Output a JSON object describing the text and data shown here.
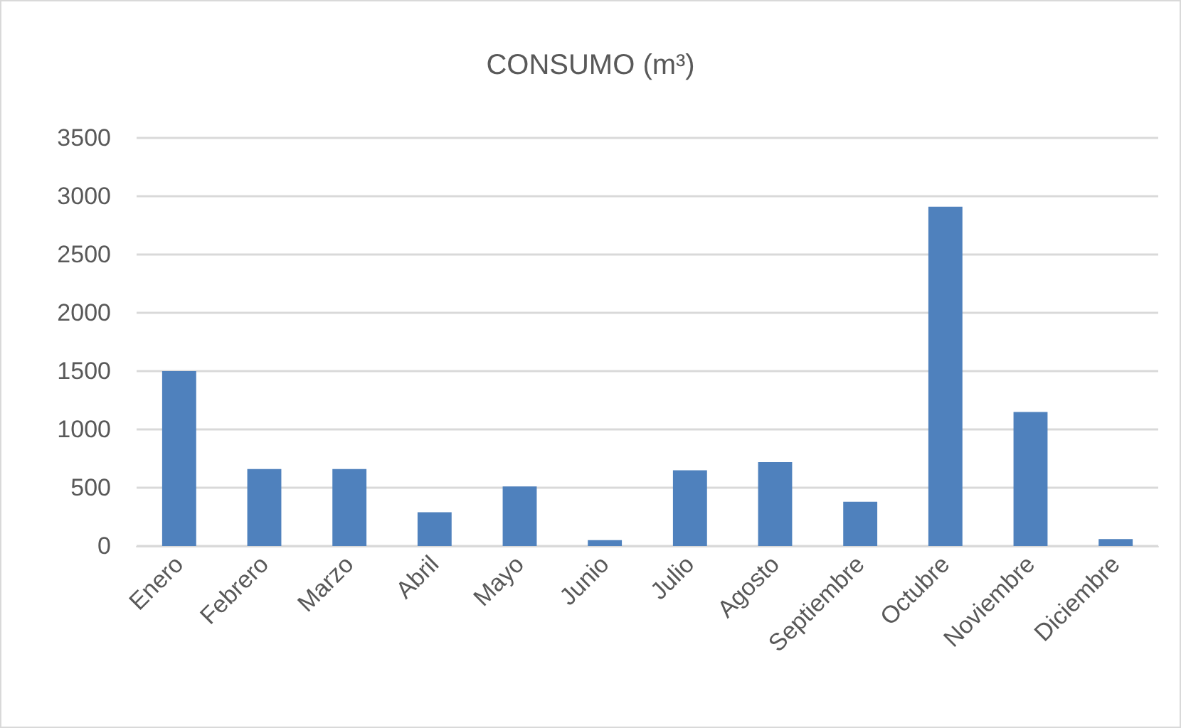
{
  "chart_data": {
    "type": "bar",
    "title": "CONSUMO (m³)",
    "categories": [
      "Enero",
      "Febrero",
      "Marzo",
      "Abril",
      "Mayo",
      "Junio",
      "Julio",
      "Agosto",
      "Septiembre",
      "Octubre",
      "Noviembre",
      "Diciembre"
    ],
    "values": [
      1500,
      660,
      660,
      290,
      510,
      50,
      650,
      720,
      380,
      2910,
      1150,
      60
    ],
    "color": "#4f81bd",
    "ylim": [
      0,
      3500
    ],
    "yticks": [
      0,
      500,
      1000,
      1500,
      2000,
      2500,
      3000,
      3500
    ],
    "grid": "y"
  }
}
